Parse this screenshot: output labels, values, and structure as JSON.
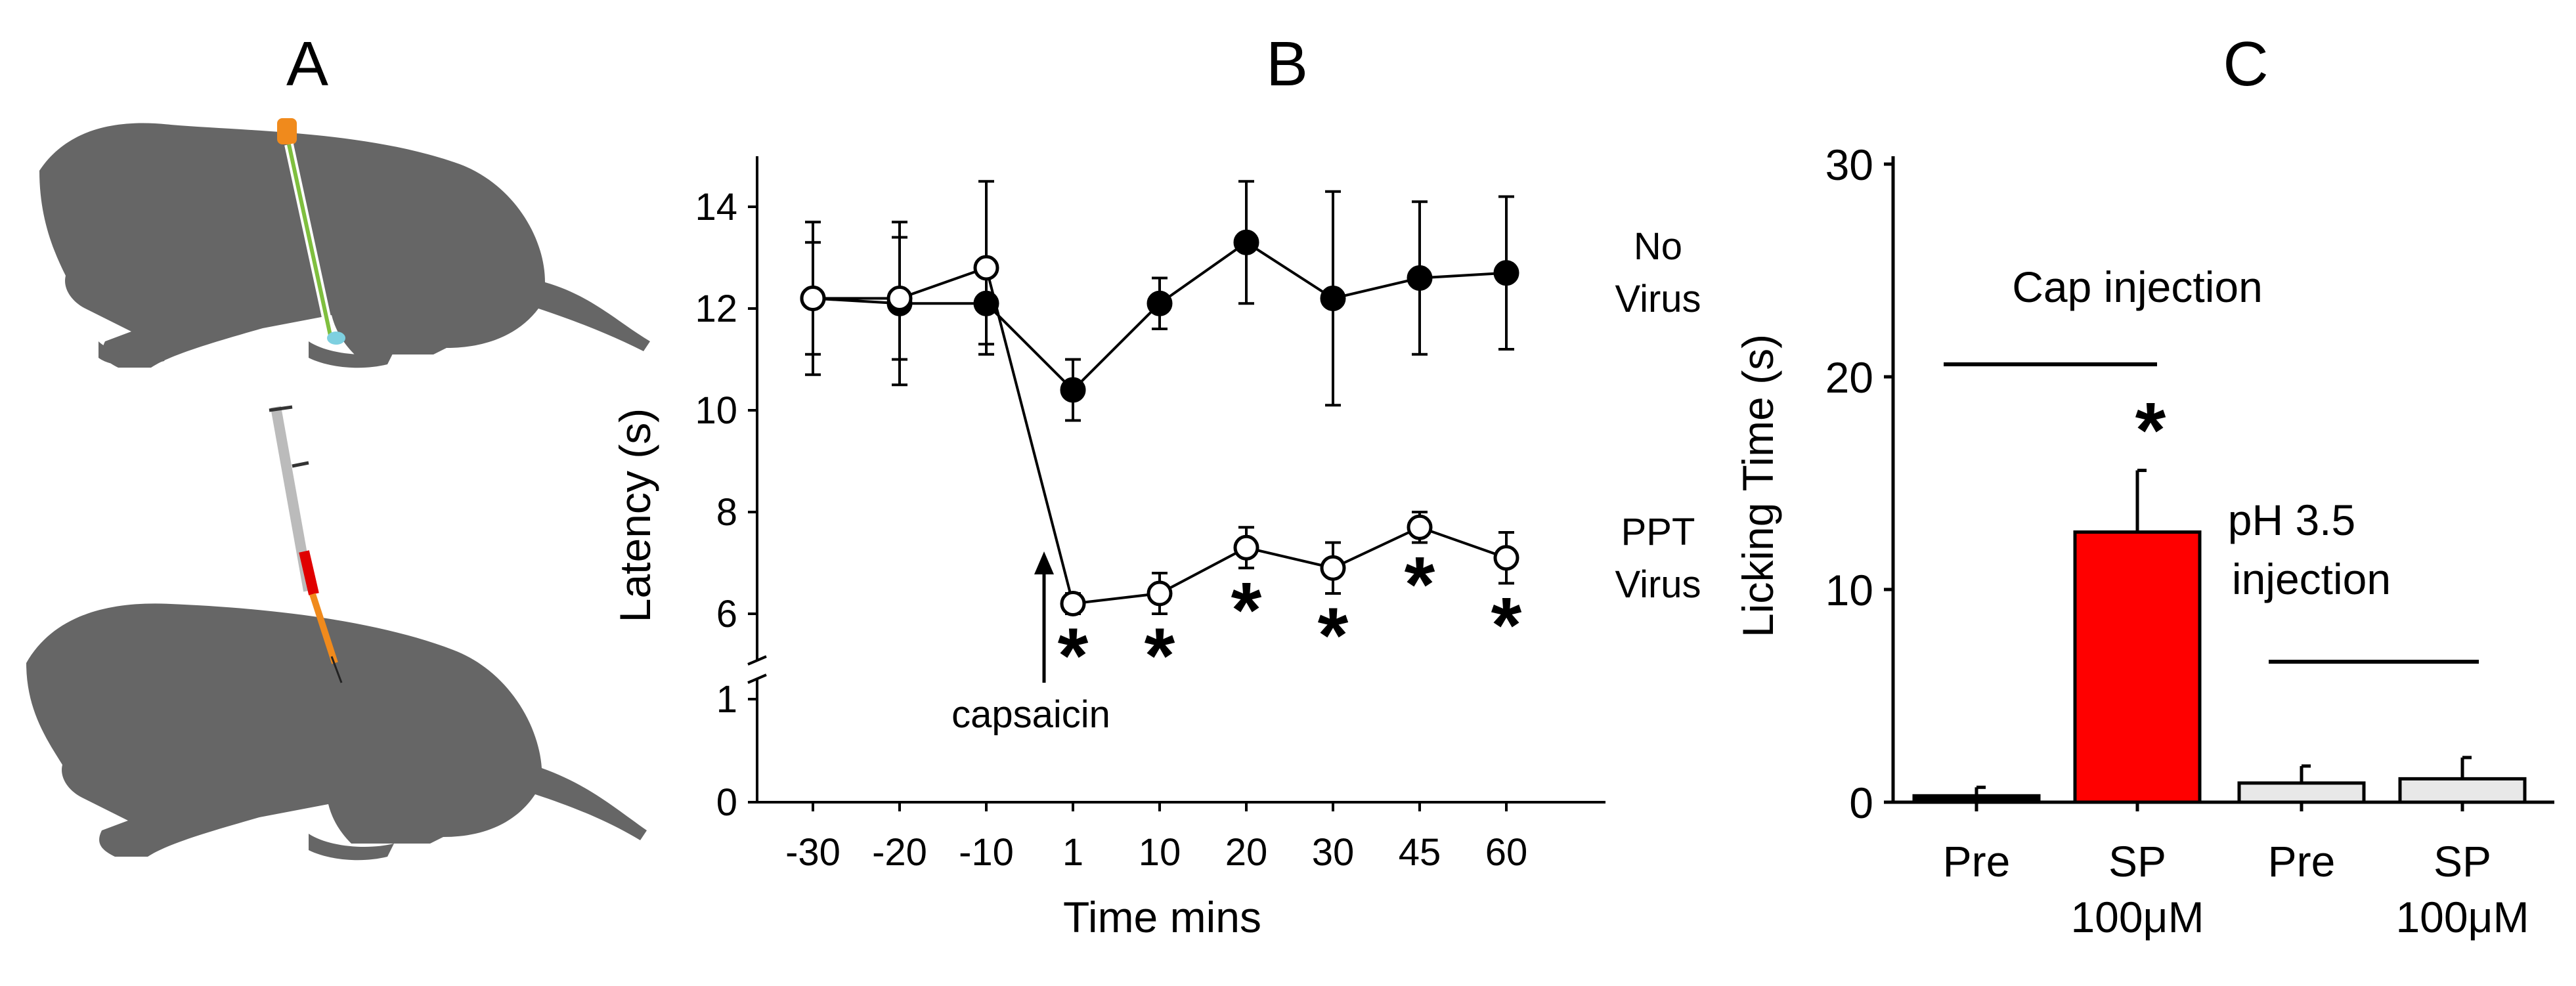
{
  "panels": {
    "a": {
      "label": "A"
    },
    "b": {
      "label": "B"
    },
    "c": {
      "label": "C"
    }
  },
  "chart_data": [
    {
      "panel": "B",
      "type": "line",
      "title": "B",
      "xlabel": "Time mins",
      "ylabel": "Latency (s)",
      "categories": [
        "-30",
        "-20",
        "-10",
        "1",
        "10",
        "20",
        "30",
        "45",
        "60"
      ],
      "yticks_upper": [
        "6",
        "8",
        "10",
        "12",
        "14"
      ],
      "yticks_lower": [
        "0",
        "1"
      ],
      "ylim": [
        0,
        15
      ],
      "axis_break": [
        1,
        5.5
      ],
      "series": [
        {
          "name": "No Virus",
          "label_line1": "No",
          "label_line2": "Virus",
          "marker": "filled-circle",
          "values": [
            12.2,
            12.1,
            12.1,
            10.4,
            12.1,
            13.3,
            12.2,
            12.6,
            12.7
          ],
          "errors": [
            1.5,
            1.6,
            0.8,
            0.6,
            0.5,
            1.2,
            2.1,
            1.5,
            1.5
          ]
        },
        {
          "name": "PPT Virus",
          "label_line1": "PPT",
          "label_line2": "Virus",
          "marker": "open-circle",
          "values": [
            12.2,
            12.2,
            12.8,
            6.2,
            6.4,
            7.3,
            6.9,
            7.7,
            7.1
          ],
          "errors": [
            1.1,
            1.2,
            1.7,
            0.2,
            0.4,
            0.4,
            0.5,
            0.3,
            0.5
          ]
        }
      ],
      "significance_marker": "*",
      "significant_indices": [
        3,
        4,
        5,
        6,
        7,
        8
      ],
      "annotation": "capsaicin"
    },
    {
      "panel": "C",
      "type": "bar",
      "title": "C",
      "ylabel": "Licking Time (s)",
      "ylim": [
        0,
        30
      ],
      "yticks": [
        "0",
        "10",
        "20",
        "30"
      ],
      "categories": [
        {
          "line1": "Pre",
          "line2": ""
        },
        {
          "line1": "SP",
          "line2": "100μM"
        },
        {
          "line1": "Pre",
          "line2": ""
        },
        {
          "line1": "SP",
          "line2": "100μM"
        }
      ],
      "values": [
        0.3,
        12.7,
        0.9,
        1.1
      ],
      "errors": [
        0.4,
        2.9,
        0.8,
        1.0
      ],
      "colors": [
        "#000000",
        "#ff0000",
        "#e8e8e8",
        "#e8e8e8"
      ],
      "groups": [
        {
          "label": "Cap injection",
          "line1": "Cap injection",
          "line2": "",
          "bars": [
            0,
            1
          ]
        },
        {
          "label": "pH 3.5 injection",
          "line1": "pH 3.5",
          "line2": "injection",
          "bars": [
            2,
            3
          ]
        }
      ],
      "significance_marker": "*",
      "significant_indices": [
        1
      ]
    }
  ]
}
